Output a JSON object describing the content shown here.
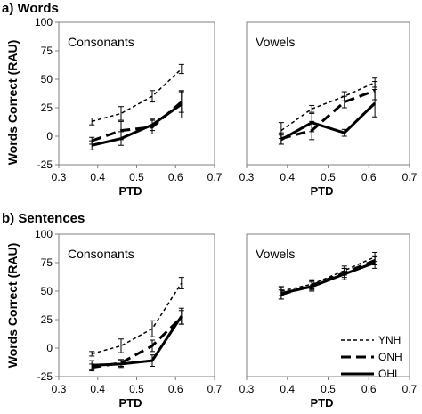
{
  "figure": {
    "section_a_label": "a) Words",
    "section_b_label": "b) Sentences",
    "ylabel": "Words Correct (RAU)",
    "xlabel": "PTD"
  },
  "legend": {
    "entries": [
      "YNH",
      "ONH",
      "OHI"
    ],
    "placement": "lower-right of panel b-Vowels"
  },
  "chart_data": [
    {
      "type": "line",
      "panel": "a) Words - Consonants",
      "title": "Consonants",
      "xlabel": "PTD",
      "ylabel": "Words Correct (RAU)",
      "xlim": [
        0.3,
        0.7
      ],
      "ylim": [
        -25,
        100
      ],
      "xticks": [
        "0.3",
        "0.4",
        "0.5",
        "0.6",
        "0.7"
      ],
      "yticks": [
        "-25",
        "0",
        "25",
        "50",
        "75",
        "100"
      ],
      "x": [
        0.385,
        0.46,
        0.54,
        0.615
      ],
      "series": [
        {
          "name": "YNH",
          "values": [
            13,
            20,
            35,
            59
          ],
          "err": [
            3,
            6,
            5,
            4
          ]
        },
        {
          "name": "ONH",
          "values": [
            -4,
            5,
            8,
            30
          ],
          "err": [
            3,
            8,
            6,
            9
          ]
        },
        {
          "name": "OHI",
          "values": [
            -8,
            -2,
            10,
            28
          ],
          "err": [
            4,
            6,
            5,
            12
          ]
        }
      ]
    },
    {
      "type": "line",
      "panel": "a) Words - Vowels",
      "title": "Vowels",
      "xlabel": "PTD",
      "xlim": [
        0.3,
        0.7
      ],
      "ylim": [
        -25,
        100
      ],
      "xticks": [
        "0.3",
        "0.4",
        "0.5",
        "0.6",
        "0.7"
      ],
      "x": [
        0.385,
        0.46,
        0.54,
        0.615
      ],
      "series": [
        {
          "name": "YNH",
          "values": [
            5,
            24,
            35,
            47
          ],
          "err": [
            7,
            3,
            4,
            4
          ]
        },
        {
          "name": "ONH",
          "values": [
            -2,
            5,
            30,
            40
          ],
          "err": [
            5,
            8,
            5,
            8
          ]
        },
        {
          "name": "OHI",
          "values": [
            -3,
            12,
            3,
            29
          ],
          "err": [
            4,
            8,
            3,
            12
          ]
        }
      ]
    },
    {
      "type": "line",
      "panel": "b) Sentences - Consonants",
      "title": "Consonants",
      "xlabel": "PTD",
      "ylabel": "Words Correct (RAU)",
      "xlim": [
        0.3,
        0.7
      ],
      "ylim": [
        -25,
        100
      ],
      "xticks": [
        "0.3",
        "0.4",
        "0.5",
        "0.6",
        "0.7"
      ],
      "yticks": [
        "-25",
        "0",
        "25",
        "50",
        "75",
        "100"
      ],
      "x": [
        0.385,
        0.46,
        0.54,
        0.615
      ],
      "series": [
        {
          "name": "YNH",
          "values": [
            -5,
            2,
            17,
            57
          ],
          "err": [
            2,
            6,
            7,
            5
          ]
        },
        {
          "name": "ONH",
          "values": [
            -17,
            -13,
            2,
            27
          ],
          "err": [
            3,
            3,
            5,
            6
          ]
        },
        {
          "name": "OHI",
          "values": [
            -15,
            -14,
            -11,
            28
          ],
          "err": [
            4,
            3,
            5,
            7
          ]
        }
      ]
    },
    {
      "type": "line",
      "panel": "b) Sentences - Vowels",
      "title": "Vowels",
      "xlabel": "PTD",
      "xlim": [
        0.3,
        0.7
      ],
      "ylim": [
        -25,
        100
      ],
      "xticks": [
        "0.3",
        "0.4",
        "0.5",
        "0.6",
        "0.7"
      ],
      "x": [
        0.385,
        0.46,
        0.54,
        0.615
      ],
      "series": [
        {
          "name": "YNH",
          "values": [
            50,
            56,
            68,
            80
          ],
          "err": [
            4,
            4,
            4,
            4
          ]
        },
        {
          "name": "ONH",
          "values": [
            47,
            55,
            66,
            77
          ],
          "err": [
            4,
            4,
            4,
            4
          ]
        },
        {
          "name": "OHI",
          "values": [
            48,
            54,
            65,
            75
          ],
          "err": [
            5,
            4,
            5,
            5
          ]
        }
      ]
    }
  ],
  "styles": {
    "line_color": "#000000",
    "series_styles": {
      "YNH": {
        "dash": "short-dash",
        "weight": "thin"
      },
      "ONH": {
        "dash": "long-dash",
        "weight": "thick"
      },
      "OHI": {
        "dash": "solid",
        "weight": "thick"
      }
    }
  }
}
